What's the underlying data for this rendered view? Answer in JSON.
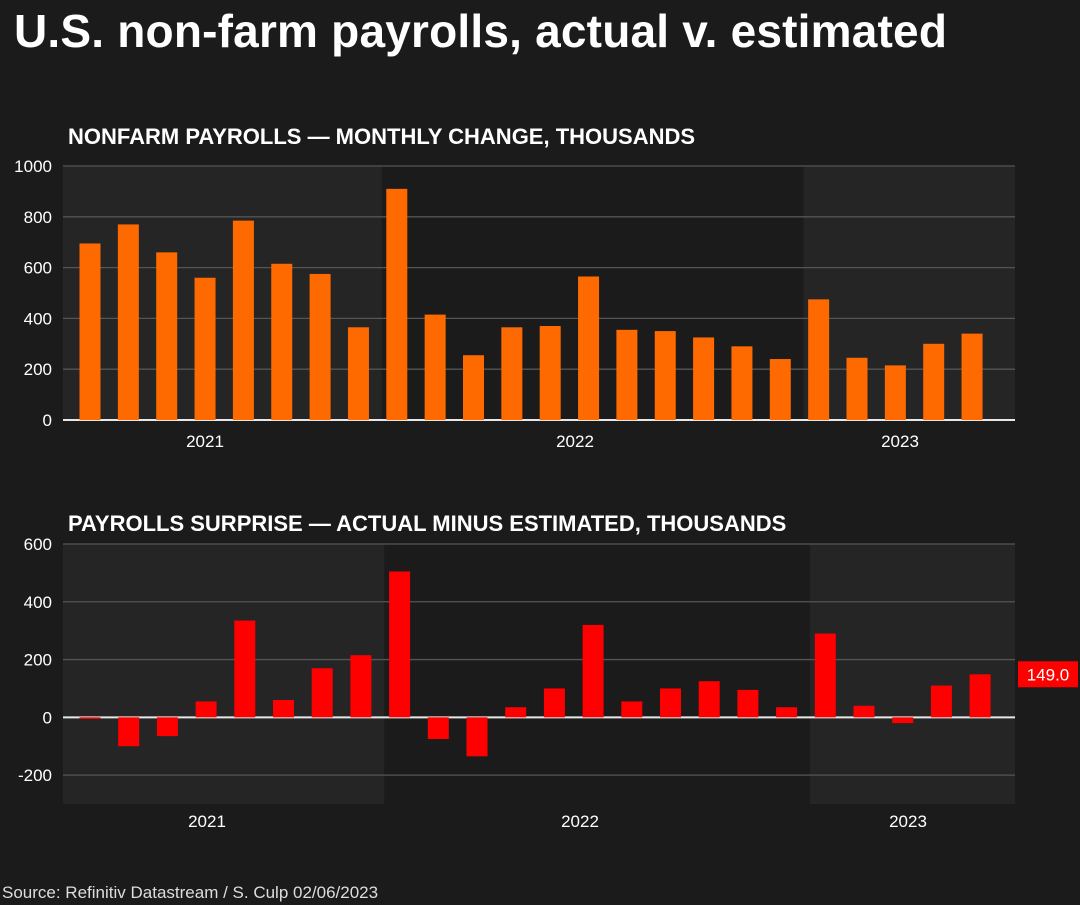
{
  "title": "U.S. non-farm payrolls, actual v. estimated",
  "source": "Source: Refinitiv Datastream / S. Culp 02/06/2023",
  "colors": {
    "background": "#1b1b1b",
    "shade": "#252525",
    "payrolls_bar": "#ff6a00",
    "surprise_bar": "#ff0000",
    "grid": "#555555",
    "text": "#ffffff"
  },
  "chart_data": [
    {
      "type": "bar",
      "title": "NONFARM PAYROLLS — MONTHLY CHANGE, THOUSANDS",
      "year_labels": [
        "2021",
        "2022",
        "2023"
      ],
      "y_ticks": [
        0,
        200,
        400,
        600,
        800,
        1000
      ],
      "ylim": [
        0,
        1000
      ],
      "values": [
        695,
        770,
        660,
        560,
        785,
        615,
        575,
        365,
        910,
        415,
        255,
        365,
        370,
        565,
        355,
        350,
        325,
        290,
        240,
        475,
        245,
        215,
        300,
        340
      ],
      "grid": true
    },
    {
      "type": "bar",
      "title": "PAYROLLS SURPRISE — ACTUAL MINUS ESTIMATED, THOUSANDS",
      "year_labels": [
        "2021",
        "2022",
        "2023"
      ],
      "y_ticks": [
        -200,
        0,
        200,
        400,
        600
      ],
      "ylim": [
        -300,
        600
      ],
      "values": [
        -5,
        -100,
        -65,
        55,
        335,
        60,
        170,
        215,
        505,
        -75,
        -135,
        35,
        100,
        320,
        55,
        100,
        125,
        95,
        35,
        290,
        40,
        -20,
        110,
        149
      ],
      "last_value_label": "149.0",
      "grid": true
    }
  ]
}
